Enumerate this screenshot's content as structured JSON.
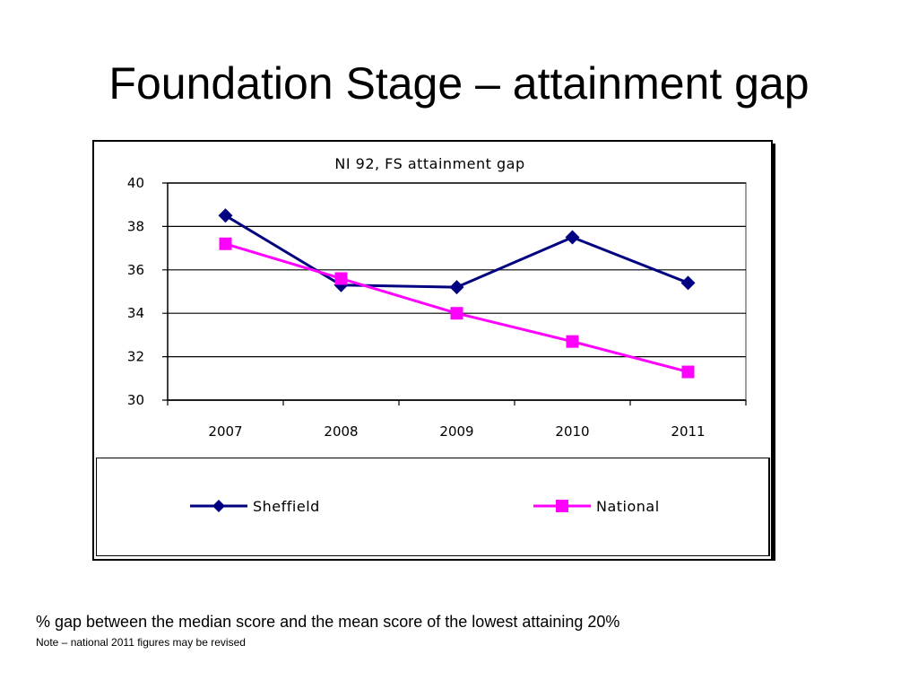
{
  "slide": {
    "title": "Foundation Stage – attainment gap",
    "footnote": "% gap between the median score and the mean score of the lowest attaining 20%",
    "note": "Note – national 2011 figures may be revised"
  },
  "chart_data": {
    "type": "line",
    "title": "NI 92, FS attainment gap",
    "categories": [
      "2007",
      "2008",
      "2009",
      "2010",
      "2011"
    ],
    "ylim": [
      30,
      40
    ],
    "yticks": [
      "30",
      "32",
      "34",
      "36",
      "38",
      "40"
    ],
    "grid": true,
    "legend_position": "bottom",
    "series": [
      {
        "name": "Sheffield",
        "values": [
          38.5,
          35.3,
          35.2,
          37.5,
          35.4
        ],
        "color": "#000080",
        "marker": "diamond"
      },
      {
        "name": "National",
        "values": [
          37.2,
          35.6,
          34.0,
          32.7,
          31.3
        ],
        "color": "#ff00ff",
        "marker": "square"
      }
    ]
  }
}
